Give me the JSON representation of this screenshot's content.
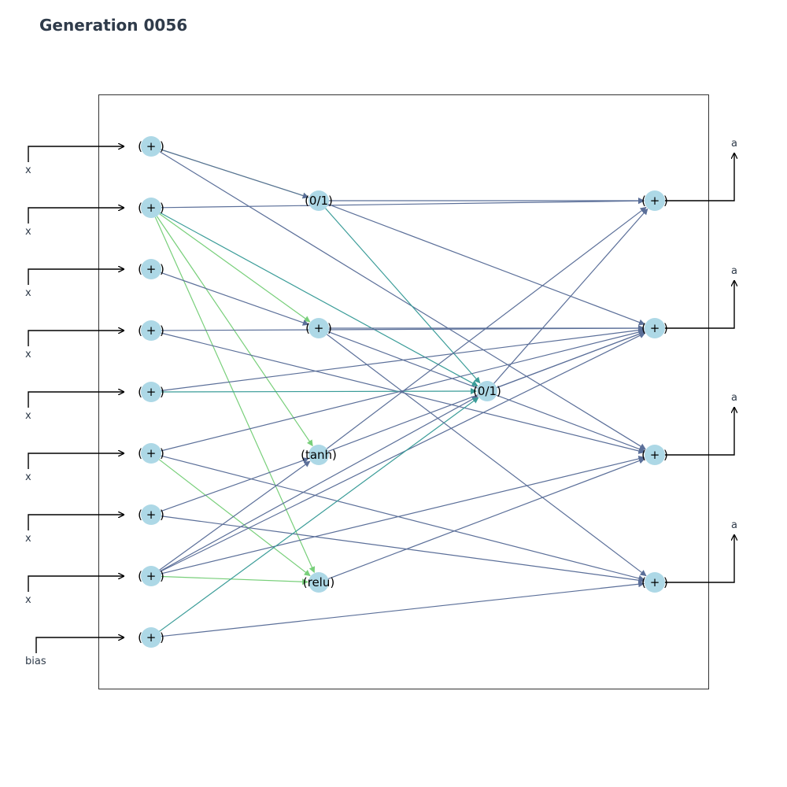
{
  "title": "Generation 0056",
  "colors": {
    "node_fill": "#add8e6",
    "edge_weak": "#5b6f99",
    "edge_mid": "#3a9c98",
    "edge_strong": "#78cf7a",
    "frame": "#333333",
    "title_text": "#2f3b4a"
  },
  "inputs": [
    {
      "label": "x",
      "node_label": "( + )"
    },
    {
      "label": "x",
      "node_label": "( + )"
    },
    {
      "label": "x",
      "node_label": "( + )"
    },
    {
      "label": "x",
      "node_label": "( + )"
    },
    {
      "label": "x",
      "node_label": "( + )"
    },
    {
      "label": "x",
      "node_label": "( + )"
    },
    {
      "label": "x",
      "node_label": "( + )"
    },
    {
      "label": "x",
      "node_label": "( + )"
    },
    {
      "label": "bias",
      "node_label": "( + )"
    }
  ],
  "hidden": [
    {
      "id": "h1",
      "node_label": "(0/1)"
    },
    {
      "id": "h2",
      "node_label": "( + )"
    },
    {
      "id": "h3",
      "node_label": "(tanh)"
    },
    {
      "id": "h4",
      "node_label": "(relu)"
    },
    {
      "id": "h5",
      "node_label": "(0/1)"
    }
  ],
  "outputs": [
    {
      "label": "a",
      "node_label": "( + )"
    },
    {
      "label": "a",
      "node_label": "( + )"
    },
    {
      "label": "a",
      "node_label": "( + )"
    },
    {
      "label": "a",
      "node_label": "( + )"
    }
  ],
  "edges": [
    {
      "from": "i0",
      "to": "h1",
      "strength": "strong"
    },
    {
      "from": "i0",
      "to": "h1",
      "strength": "weak"
    },
    {
      "from": "i0",
      "to": "o2",
      "strength": "weak"
    },
    {
      "from": "i1",
      "to": "o0",
      "strength": "weak"
    },
    {
      "from": "i1",
      "to": "h2",
      "strength": "strong"
    },
    {
      "from": "i1",
      "to": "h3",
      "strength": "strong"
    },
    {
      "from": "i1",
      "to": "h4",
      "strength": "strong"
    },
    {
      "from": "i1",
      "to": "h5",
      "strength": "mid"
    },
    {
      "from": "i2",
      "to": "h2",
      "strength": "weak"
    },
    {
      "from": "i3",
      "to": "o1",
      "strength": "weak"
    },
    {
      "from": "i3",
      "to": "o2",
      "strength": "weak"
    },
    {
      "from": "i4",
      "to": "h5",
      "strength": "mid"
    },
    {
      "from": "i4",
      "to": "o1",
      "strength": "weak"
    },
    {
      "from": "i5",
      "to": "o1",
      "strength": "weak"
    },
    {
      "from": "i5",
      "to": "o3",
      "strength": "weak"
    },
    {
      "from": "i5",
      "to": "h4",
      "strength": "strong"
    },
    {
      "from": "i6",
      "to": "h3",
      "strength": "weak"
    },
    {
      "from": "i6",
      "to": "o3",
      "strength": "weak"
    },
    {
      "from": "i7",
      "to": "h4",
      "strength": "strong"
    },
    {
      "from": "i7",
      "to": "h5",
      "strength": "weak"
    },
    {
      "from": "i7",
      "to": "o1",
      "strength": "weak"
    },
    {
      "from": "i7",
      "to": "o2",
      "strength": "weak"
    },
    {
      "from": "i7",
      "to": "h3",
      "strength": "weak"
    },
    {
      "from": "i8",
      "to": "h5",
      "strength": "mid"
    },
    {
      "from": "i8",
      "to": "o3",
      "strength": "weak"
    },
    {
      "from": "h1",
      "to": "o0",
      "strength": "weak"
    },
    {
      "from": "h1",
      "to": "o1",
      "strength": "weak"
    },
    {
      "from": "h1",
      "to": "h5",
      "strength": "mid"
    },
    {
      "from": "h2",
      "to": "o1",
      "strength": "weak"
    },
    {
      "from": "h2",
      "to": "o2",
      "strength": "weak"
    },
    {
      "from": "h2",
      "to": "o3",
      "strength": "weak"
    },
    {
      "from": "h3",
      "to": "o0",
      "strength": "weak"
    },
    {
      "from": "h3",
      "to": "o1",
      "strength": "weak"
    },
    {
      "from": "h4",
      "to": "o2",
      "strength": "weak"
    },
    {
      "from": "h5",
      "to": "o0",
      "strength": "weak"
    },
    {
      "from": "h5",
      "to": "o1",
      "strength": "weak"
    }
  ]
}
